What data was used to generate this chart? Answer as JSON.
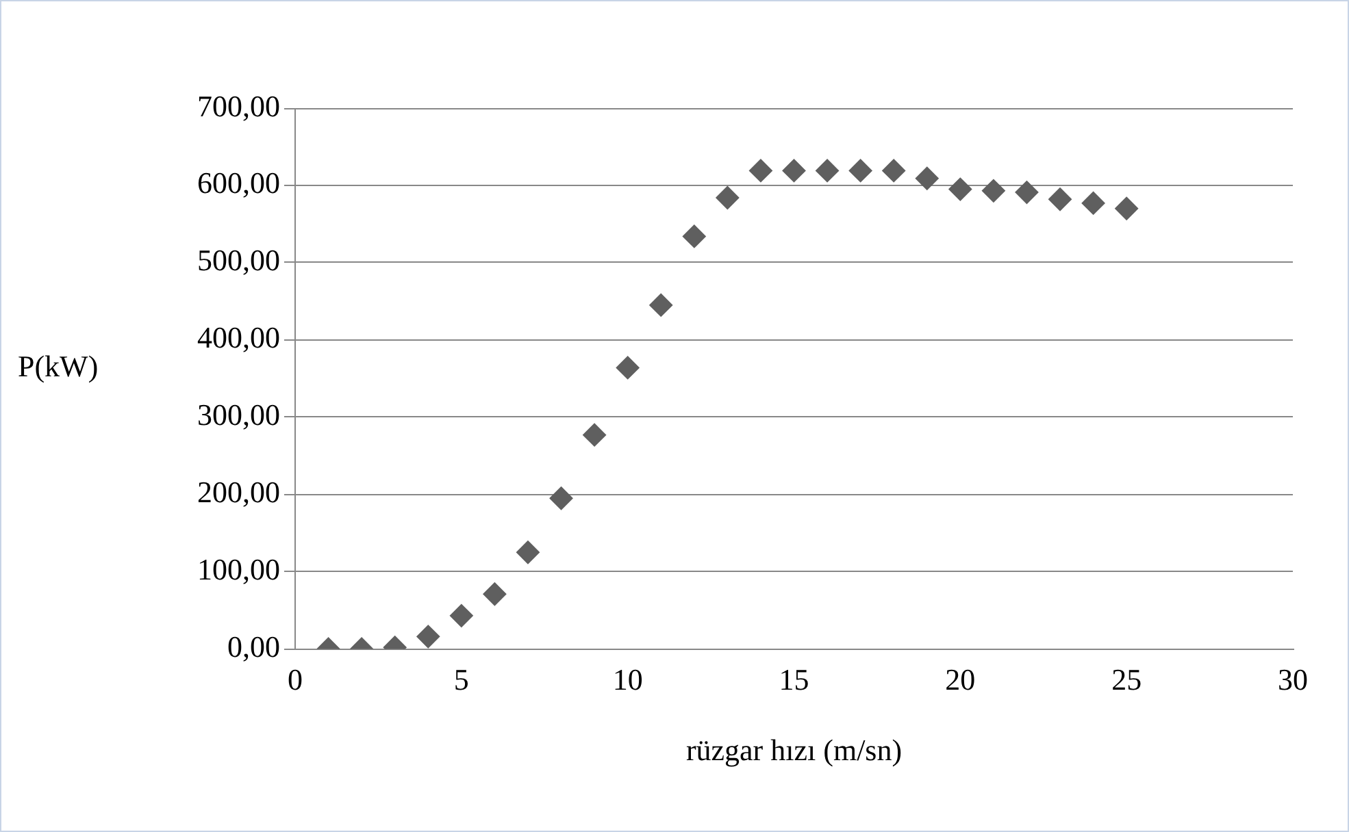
{
  "chart_data": {
    "type": "scatter",
    "xlabel": "rüzgar hızı (m/sn)",
    "ylabel": "P(kW)",
    "x": [
      1,
      2,
      3,
      4,
      5,
      6,
      7,
      8,
      9,
      10,
      11,
      12,
      13,
      14,
      15,
      16,
      17,
      18,
      19,
      20,
      21,
      22,
      23,
      24,
      25
    ],
    "series": [
      {
        "color": "#5f5f5f",
        "values": [
          0,
          0,
          2,
          16,
          43,
          71,
          125,
          195,
          277,
          364,
          445,
          534,
          584,
          619,
          619,
          619,
          619,
          619,
          609,
          595,
          593,
          591,
          582,
          577,
          570
        ]
      }
    ],
    "xlim": [
      0,
      30
    ],
    "xticks": [
      0,
      5,
      10,
      15,
      20,
      25,
      30
    ],
    "ylim": [
      0,
      700
    ],
    "yticks": [
      {
        "value": 0,
        "label": "0,00"
      },
      {
        "value": 100,
        "label": "100,00"
      },
      {
        "value": 200,
        "label": "200,00"
      },
      {
        "value": 300,
        "label": "300,00"
      },
      {
        "value": 400,
        "label": "400,00"
      },
      {
        "value": 500,
        "label": "500,00"
      },
      {
        "value": 600,
        "label": "600,00"
      },
      {
        "value": 700,
        "label": "700,00"
      }
    ],
    "grid": "y",
    "legend": false,
    "marker": "diamond"
  }
}
